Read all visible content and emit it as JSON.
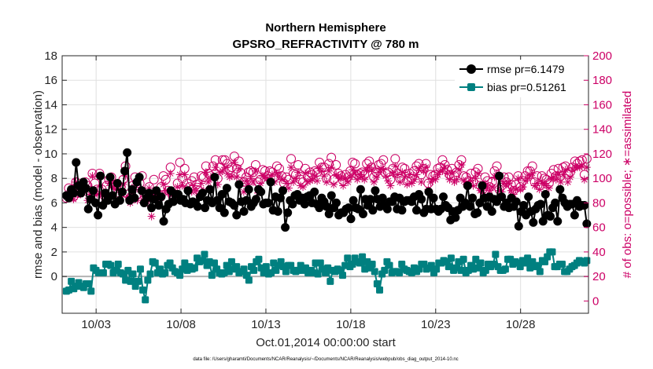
{
  "chart_data": {
    "type": "line",
    "title": "Northern Hemisphere",
    "subtitle": "GPSRO_REFRACTIVITY @ 780 m",
    "xlabel": "Oct.01,2014 00:00:00 start",
    "ylabel": "rmse and bias (model - observation)",
    "ylabel_right": "# of obs: o=possible; ∗=assimilated",
    "footnote": "data file: /Users/gharamti/Documents/NCAR/Reanalysis/~/Documents/NCAR/Reanalysis/webpub/obs_diag_output_2014-10.nc",
    "xlim": [
      1,
      32
    ],
    "ylim": [
      -3,
      18
    ],
    "ylim_right": [
      -10,
      200
    ],
    "x_ticks": [
      3,
      8,
      13,
      18,
      23,
      28
    ],
    "x_tick_labels": [
      "10/03",
      "10/08",
      "10/13",
      "10/18",
      "10/23",
      "10/28"
    ],
    "y_ticks": [
      0,
      2,
      4,
      6,
      8,
      10,
      12,
      14,
      16,
      18
    ],
    "y_tick_labels": [
      "0",
      "2",
      "4",
      "6",
      "8",
      "10",
      "12",
      "14",
      "16",
      "18"
    ],
    "y_ticks_right": [
      0,
      20,
      40,
      60,
      80,
      100,
      120,
      140,
      160,
      180,
      200
    ],
    "y_tick_labels_right": [
      "0",
      "20",
      "40",
      "60",
      "80",
      "100",
      "120",
      "140",
      "160",
      "180",
      "200"
    ],
    "grid": true,
    "legend_position": "top-right",
    "legend": [
      "rmse pr=6.1479",
      "bias pr=0.51261"
    ],
    "colors": {
      "rmse": "#000000",
      "bias": "#008080",
      "obs": "#cc0066",
      "zero_line": "#b3b3b3",
      "grid": "#e0e0e0"
    },
    "series": [
      {
        "name": "rmse pr=6.1479",
        "marker": "circle",
        "values": [
          6.6,
          6.4,
          7.1,
          6.8,
          9.3,
          7.4,
          6.8,
          7.7,
          7.2,
          5.5,
          6.3,
          7.0,
          6.0,
          5.0,
          8.2,
          5.8,
          6.8,
          6.2,
          8.1,
          6.6,
          5.9,
          7.6,
          6.2,
          6.9,
          8.6,
          10.1,
          6.2,
          7.1,
          6.4,
          7.7,
          8.1,
          7.0,
          6.0,
          6.4,
          6.8,
          5.6,
          6.3,
          7.0,
          5.8,
          6.5,
          4.5,
          5.5,
          5.9,
          7.0,
          6.1,
          6.7,
          6.7,
          6.2,
          6.3,
          6.0,
          7.0,
          5.9,
          6.1,
          6.0,
          5.7,
          6.5,
          6.8,
          5.6,
          6.2,
          7.1,
          6.0,
          8.1,
          6.2,
          5.6,
          6.7,
          5.2,
          7.2,
          6.1,
          6.0,
          5.8,
          5.0,
          7.5,
          6.1,
          5.3,
          6.2,
          7.1,
          5.7,
          6.0,
          6.3,
          7.1,
          6.9,
          5.9,
          6.0,
          6.0,
          7.7,
          5.4,
          6.5,
          5.3,
          6.4,
          7.0,
          4.0,
          5.2,
          6.2,
          5.9,
          6.6,
          6.7,
          6.2,
          6.4,
          5.9,
          6.5,
          6.6,
          6.0,
          6.9,
          5.9,
          5.6,
          6.4,
          6.1,
          5.7,
          5.1,
          6.6,
          5.6,
          6.0,
          5.0,
          5.2,
          5.2,
          5.5,
          5.6,
          4.7,
          6.2,
          5.6,
          5.5,
          7.1,
          5.1,
          6.3,
          5.8,
          6.3,
          5.4,
          7.0,
          6.3,
          5.7,
          6.4,
          5.8,
          5.5,
          6.1,
          6.1,
          6.5,
          5.5,
          6.4,
          5.4,
          6.1,
          6.2,
          6.2,
          6.1,
          6.5,
          5.4,
          6.7,
          6.3,
          5.2,
          5.5,
          6.9,
          5.5,
          6.4,
          5.5,
          5.3,
          5.5,
          6.5,
          5.8,
          5.6,
          4.6,
          5.3,
          4.8,
          5.4,
          6.4,
          5.7,
          6.0,
          7.4,
          5.7,
          6.4,
          5.1,
          5.2,
          6.0,
          7.4,
          6.4,
          5.7,
          6.5,
          5.3,
          6.3,
          6.1,
          8.2,
          6.5,
          5.7,
          6.0,
          5.6,
          6.4,
          5.7,
          6.1,
          4.1,
          5.3,
          5.8,
          5.0,
          6.5,
          5.3,
          4.4,
          5.5,
          5.8,
          5.9,
          4.5,
          6.7,
          5.0,
          4.9,
          5.6,
          6.0,
          4.5,
          7.1,
          6.4,
          6.0,
          5.7,
          5.9,
          5.9,
          5.0,
          6.2,
          5.7,
          5.8,
          5.8,
          4.3
        ]
      },
      {
        "name": "bias pr=0.51261",
        "marker": "square",
        "values": [
          -1.2,
          -1.1,
          -0.4,
          -1.0,
          -0.8,
          -0.5,
          -0.8,
          -0.9,
          -0.6,
          -0.6,
          -1.2,
          0.7,
          0.5,
          0.3,
          0.3,
          0.3,
          1.0,
          1.0,
          0.9,
          0.3,
          0.5,
          1.0,
          0.3,
          0.2,
          -0.3,
          0.5,
          -0.4,
          0.2,
          -0.8,
          -0.4,
          0.6,
          -1.1,
          -1.9,
          -0.3,
          0.2,
          1.2,
          1.1,
          0.3,
          0.6,
          0.2,
          0.3,
          0.9,
          1.1,
          0.7,
          0.4,
          0.3,
          0.1,
          0.6,
          1.1,
          0.5,
          0.8,
          0.6,
          0.7,
          1.5,
          1.2,
          1.3,
          1.8,
          0.9,
          1.2,
          0.1,
          1.1,
          0.6,
          0.3,
          0.2,
          0.3,
          0.9,
          0.4,
          1.2,
          0.6,
          0.8,
          0.3,
          0.4,
          0.6,
          0.1,
          -0.3,
          0.8,
          0.5,
          1.2,
          1.4,
          0.7,
          0.3,
          0.8,
          0.2,
          0.3,
          1.1,
          0.5,
          0.9,
          1.2,
          0.8,
          0.4,
          0.9,
          0.9,
          0.5,
          0.4,
          0.5,
          0.9,
          0.5,
          0.7,
          0.3,
          0.5,
          0.3,
          1.1,
          0.2,
          1.1,
          0.6,
          0.3,
          0.7,
          -0.4,
          0.5,
          0.4,
          0.6,
          0.5,
          0.1,
          0.9,
          1.5,
          0.8,
          1.0,
          1.5,
          1.2,
          1.1,
          1.6,
          0.6,
          1.2,
          0.7,
          1.0,
          0.4,
          -0.6,
          -1.1,
          0.2,
          0.5,
          1.2,
          0.9,
          0.3,
          0.4,
          0.4,
          0.3,
          1.0,
          0.6,
          0.5,
          0.4,
          0.3,
          0.7,
          0.4,
          0.6,
          1.0,
          1.0,
          0.6,
          0.7,
          0.9,
          0.3,
          0.6,
          1.1,
          1.1,
          1.3,
          1.2,
          0.8,
          1.5,
          0.5,
          0.7,
          1.2,
          0.5,
          1.4,
          0.3,
          0.5,
          0.9,
          0.6,
          1.4,
          0.7,
          1.1,
          0.3,
          0.5,
          1.0,
          0.8,
          1.0,
          1.8,
          0.8,
          0.5,
          0.5,
          0.6,
          1.4,
          1.4,
          1.0,
          1.2,
          1.1,
          0.8,
          1.3,
          1.1,
          1.5,
          0.7,
          1.2,
          0.8,
          0.9,
          0.4,
          1.3,
          1.2,
          1.6,
          2.0,
          2.0,
          0.8,
          0.8,
          1.0,
          1.0,
          0.4,
          0.4,
          0.6,
          0.8,
          0.9,
          1.1,
          1.3,
          1.2,
          1.1,
          1.3
        ]
      },
      {
        "name": "# of obs possible",
        "marker": "open-circle",
        "axis": "right",
        "values": [
          84,
          92,
          89,
          85,
          97,
          88,
          92,
          91,
          97,
          94,
          90,
          104,
          96,
          91,
          104,
          91,
          86,
          94,
          99,
          101,
          95,
          94,
          85,
          93,
          99,
          110,
          87,
          84,
          94,
          101,
          87,
          96,
          102,
          86,
          85,
          93,
          78,
          99,
          89,
          87,
          93,
          102,
          99,
          90,
          109,
          85,
          87,
          96,
          113,
          100,
          108,
          96,
          93,
          98,
          101,
          95,
          90,
          102,
          101,
          110,
          104,
          102,
          110,
          115,
          100,
          109,
          115,
          115,
          112,
          107,
          109,
          118,
          108,
          114,
          104,
          97,
          101,
          105,
          106,
          105,
          111,
          97,
          99,
          107,
          106,
          102,
          106,
          105,
          101,
          110,
          108,
          102,
          96,
          101,
          99,
          116,
          104,
          103,
          111,
          99,
          97,
          108,
          101,
          105,
          103,
          106,
          105,
          113,
          109,
          109,
          100,
          112,
          117,
          99,
          111,
          104,
          102,
          98,
          103,
          101,
          106,
          113,
          112,
          103,
          104,
          105,
          103,
          112,
          114,
          109,
          101,
          105,
          111,
          112,
          115,
          104,
          105,
          99,
          108,
          116,
          104,
          100,
          109,
          108,
          98,
          104,
          100,
          106,
          110,
          112,
          103,
          108,
          112,
          96,
          103,
          102,
          103,
          108,
          109,
          115,
          111,
          107,
          103,
          108,
          102,
          105,
          111,
          115,
          102,
          101,
          98,
          104,
          97,
          105,
          108,
          94,
          91,
          101,
          98,
          93,
          97,
          106,
          110,
          91,
          94,
          101,
          97,
          101,
          95,
          90,
          95,
          102,
          93,
          98,
          102,
          106,
          106,
          110,
          97,
          102,
          94,
          102,
          100,
          99,
          96,
          104,
          107,
          102,
          108,
          102,
          109,
          110,
          103,
          105,
          109,
          114,
          112,
          114,
          115,
          103,
          116
        ]
      },
      {
        "name": "# of obs assimilated",
        "marker": "asterisk",
        "axis": "right",
        "values": [
          85,
          85,
          91,
          83,
          97,
          88,
          87,
          88,
          92,
          82,
          87,
          102,
          87,
          87,
          101,
          86,
          80,
          86,
          96,
          94,
          93,
          91,
          82,
          85,
          95,
          102,
          85,
          80,
          89,
          95,
          82,
          91,
          90,
          83,
          81,
          92,
          69,
          88,
          84,
          86,
          84,
          95,
          90,
          88,
          104,
          82,
          85,
          93,
          103,
          94,
          103,
          92,
          89,
          89,
          94,
          90,
          86,
          96,
          90,
          105,
          97,
          100,
          102,
          109,
          95,
          105,
          106,
          109,
          104,
          101,
          102,
          113,
          101,
          108,
          96,
          89,
          98,
          95,
          100,
          97,
          106,
          88,
          96,
          102,
          101,
          100,
          98,
          103,
          97,
          104,
          102,
          99,
          91,
          96,
          92,
          109,
          97,
          100,
          105,
          94,
          93,
          104,
          97,
          98,
          99,
          102,
          98,
          108,
          106,
          102,
          97,
          106,
          109,
          95,
          103,
          102,
          100,
          94,
          100,
          97,
          101,
          107,
          104,
          99,
          103,
          101,
          99,
          107,
          109,
          107,
          97,
          101,
          105,
          108,
          107,
          102,
          98,
          94,
          104,
          110,
          103,
          97,
          105,
          101,
          95,
          103,
          96,
          99,
          103,
          108,
          97,
          106,
          109,
          91,
          97,
          100,
          99,
          103,
          106,
          106,
          109,
          104,
          99,
          104,
          97,
          99,
          107,
          111,
          98,
          95,
          96,
          98,
          94,
          100,
          104,
          90,
          90,
          96,
          93,
          90,
          93,
          101,
          104,
          90,
          89,
          96,
          95,
          96,
          90,
          87,
          91,
          100,
          91,
          93,
          98,
          100,
          102,
          104,
          94,
          96,
          91,
          96,
          96,
          94,
          92,
          100,
          101,
          99,
          103,
          97,
          103,
          107,
          97,
          101,
          107,
          109,
          109,
          109,
          110,
          99,
          109
        ]
      }
    ]
  }
}
